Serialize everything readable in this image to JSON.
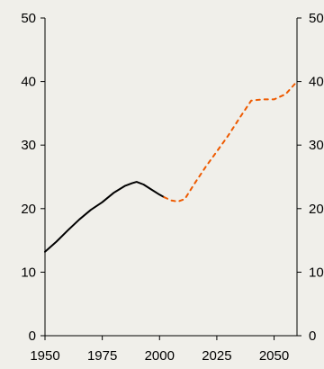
{
  "chart_data": {
    "type": "line",
    "title": "",
    "xlabel": "",
    "ylabel": "",
    "xlim": [
      1950,
      2060
    ],
    "ylim": [
      0,
      50
    ],
    "x_ticks": [
      1950,
      1975,
      2000,
      2025,
      2050
    ],
    "y_ticks": [
      0,
      10,
      20,
      30,
      40,
      50
    ],
    "right_axis": true,
    "grid": false,
    "legend": "none",
    "series": [
      {
        "style": "solid",
        "color": "#000000",
        "x": [
          1950,
          1955,
          1960,
          1965,
          1970,
          1975,
          1980,
          1985,
          1988,
          1990,
          1993,
          1996,
          2000,
          2002
        ],
        "y": [
          13.2,
          14.8,
          16.6,
          18.3,
          19.8,
          21.0,
          22.5,
          23.6,
          24.0,
          24.2,
          23.8,
          23.1,
          22.2,
          21.8
        ]
      },
      {
        "style": "dotted",
        "color": "#ee5a00",
        "x": [
          2002,
          2005,
          2008,
          2011,
          2015,
          2020,
          2025,
          2030,
          2035,
          2040,
          2045,
          2050,
          2055,
          2060
        ],
        "y": [
          21.8,
          21.3,
          21.1,
          21.5,
          23.8,
          26.5,
          29.0,
          31.5,
          34.3,
          37.0,
          37.2,
          37.2,
          38.0,
          40.0
        ]
      }
    ]
  }
}
